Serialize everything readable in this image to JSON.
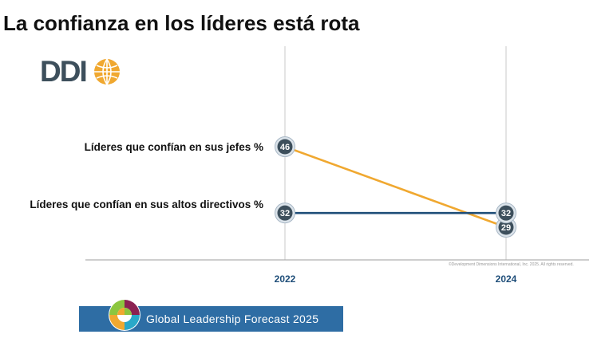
{
  "page": {
    "title": "La confianza en los líderes está rota",
    "logo_text": "DDI",
    "copyright": "©Development Dimensions International, Inc. 2025. All rights reserved.",
    "banner_text": "Global Leadership Forecast 2025"
  },
  "chart_data": {
    "type": "line",
    "x": [
      "2022",
      "2024"
    ],
    "series": [
      {
        "name": "Líderes que confían en sus jefes %",
        "values": [
          46,
          29
        ],
        "color": "#f0a830"
      },
      {
        "name": "Líderes que confían en sus altos directivos %",
        "values": [
          32,
          32
        ],
        "color": "#1f4e79"
      }
    ],
    "marker_style": "circle-badge",
    "marker_color": "#3d4f5c",
    "axis_color": "#1f4e79",
    "grid": "vertical-lines-at-years"
  }
}
